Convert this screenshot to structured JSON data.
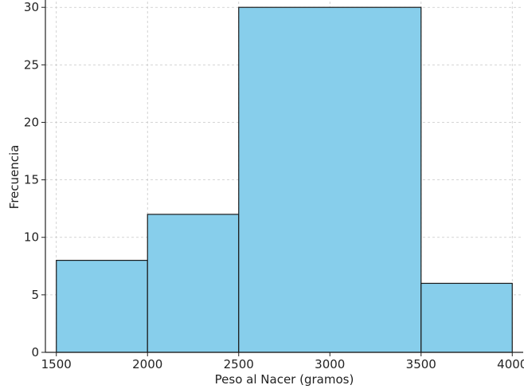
{
  "chart_data": {
    "type": "bar",
    "title": "",
    "xlabel": "Peso al Nacer (gramos)",
    "ylabel": "Frecuencia",
    "bins": [
      {
        "start": 1500,
        "end": 2000,
        "value": 8
      },
      {
        "start": 2000,
        "end": 2500,
        "value": 12
      },
      {
        "start": 2500,
        "end": 3500,
        "value": 30
      },
      {
        "start": 3500,
        "end": 4000,
        "value": 6
      }
    ],
    "xlim": [
      1440,
      4060
    ],
    "ylim": [
      0,
      30.5
    ],
    "xticks": [
      1500,
      2000,
      2500,
      3000,
      3500,
      4000
    ],
    "yticks": [
      0,
      5,
      10,
      15,
      20,
      25,
      30
    ],
    "grid": true,
    "bar_color": "#87CEEB",
    "edge_color": "#1a1a1a"
  }
}
